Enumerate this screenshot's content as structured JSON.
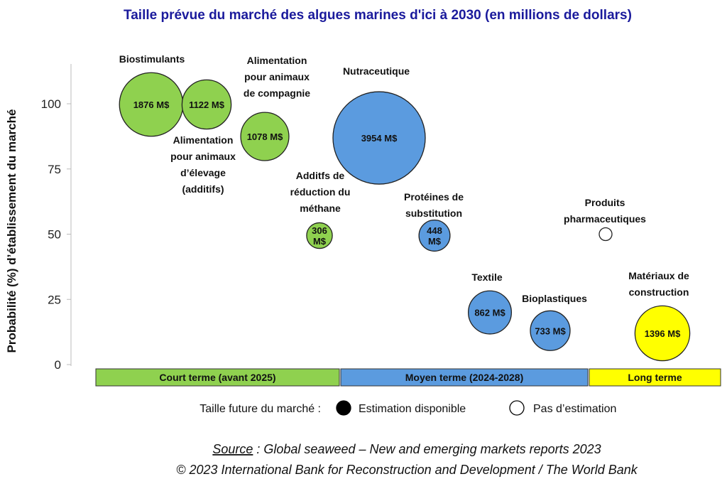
{
  "chart_data": {
    "type": "bubble",
    "title": "Taille prévue du marché des algues marines d'ici à 2030 (en millions de dollars)",
    "ylabel": "Probabilité (%) d’établissement du marché",
    "xlabel": "",
    "ylim": [
      0,
      110
    ],
    "yticks": [
      0,
      25,
      50,
      75,
      100
    ],
    "grid": false,
    "colors": {
      "green": "#8fd14f",
      "blue": "#5b9bdf",
      "yellow": "#ffff00",
      "empty": "#ffffff",
      "title": "#1a1a9c"
    },
    "bands": [
      {
        "label": "Court terme (avant 2025)",
        "color": "#8fd14f"
      },
      {
        "label": "Moyen terme (2024-2028)",
        "color": "#5b9bdf"
      },
      {
        "label": "Long terme",
        "color": "#ffff00"
      }
    ],
    "points": [
      {
        "category": [
          "Biostimulants"
        ],
        "y": 100,
        "size": 1876,
        "value_label": [
          "1876 M$"
        ],
        "color": "#8fd14f"
      },
      {
        "category": [],
        "y": 100,
        "size": 1122,
        "value_label": [
          "1122 M$"
        ],
        "color": "#8fd14f"
      },
      {
        "category": [
          "Alimentation",
          "pour animaux",
          "de compagnie"
        ],
        "y": 88,
        "size": 1078,
        "value_label": [
          "1078 M$"
        ],
        "color": "#8fd14f"
      },
      {
        "category": [
          "Alimentation",
          "pour animaux",
          "d’élevage",
          "(additifs)"
        ],
        "y": null,
        "size": null,
        "value_label": [],
        "color": ""
      },
      {
        "category": [
          "Nutraceutique"
        ],
        "y": 88,
        "size": 3954,
        "value_label": [
          "3954 M$"
        ],
        "color": "#5b9bdf"
      },
      {
        "category": [
          "Additfs de",
          "réduction du",
          "méthane"
        ],
        "y": 50,
        "size": 306,
        "value_label": [
          "306",
          "M$"
        ],
        "color": "#8fd14f"
      },
      {
        "category": [
          "Protéines de",
          "substitution"
        ],
        "y": 50,
        "size": 448,
        "value_label": [
          "448",
          "M$"
        ],
        "color": "#5b9bdf"
      },
      {
        "category": [
          "Produits",
          "pharmaceutiques"
        ],
        "y": 50,
        "size": null,
        "value_label": [],
        "color": "#ffffff"
      },
      {
        "category": [
          "Textile"
        ],
        "y": 20,
        "size": 862,
        "value_label": [
          "862 M$"
        ],
        "color": "#5b9bdf"
      },
      {
        "category": [
          "Bioplastiques"
        ],
        "y": 13,
        "size": 733,
        "value_label": [
          "733 M$"
        ],
        "color": "#5b9bdf"
      },
      {
        "category": [
          "Matériaux de",
          "construction"
        ],
        "y": 12,
        "size": 1396,
        "value_label": [
          "1396 M$"
        ],
        "color": "#ffff00"
      }
    ],
    "legend": {
      "title": "Taille future du marché :",
      "items": [
        {
          "label": "Estimation disponible",
          "filled": true
        },
        {
          "label": "Pas d’estimation",
          "filled": false
        }
      ]
    },
    "footer": {
      "source_word": "Source",
      "source_rest": " : Global seaweed – New and emerging markets reports 2023",
      "copyright": "© 2023 International Bank for Reconstruction and Development / The World Bank"
    }
  }
}
